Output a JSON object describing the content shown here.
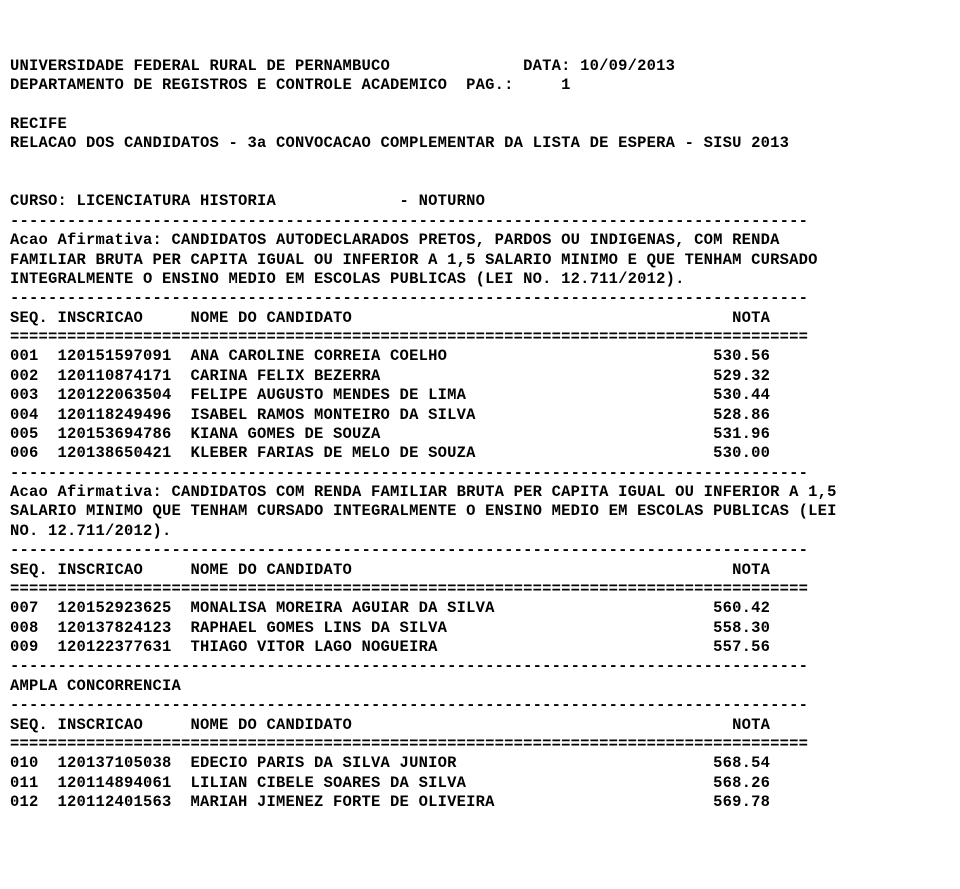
{
  "header": {
    "university": "UNIVERSIDADE FEDERAL RURAL DE PERNAMBUCO",
    "date_label": "DATA: 10/09/2013",
    "department": "DEPARTAMENTO DE REGISTROS E CONTROLE ACADEMICO",
    "page_label": "PAG.:     1",
    "city": "RECIFE",
    "report_title": "RELACAO DOS CANDIDATOS - 3a CONVOCACAO COMPLEMENTAR DA LISTA DE ESPERA - SISU 2013",
    "course_label": "CURSO: LICENCIATURA HISTORIA",
    "shift": "- NOTURNO"
  },
  "sep": {
    "dash": "------------------------------------------------------------------------------------",
    "equals": "===================================================================================="
  },
  "columns": {
    "seq": "SEQ.",
    "inscr": "INSCRICAO",
    "nome": "NOME DO CANDIDATO",
    "nota": "NOTA"
  },
  "sections": [
    {
      "title_lines": [
        "Acao Afirmativa: CANDIDATOS AUTODECLARADOS PRETOS, PARDOS OU INDIGENAS, COM RENDA",
        "FAMILIAR BRUTA PER CAPITA IGUAL OU INFERIOR A 1,5 SALARIO MINIMO E QUE TENHAM CURSADO",
        "INTEGRALMENTE O ENSINO MEDIO EM ESCOLAS PUBLICAS (LEI NO. 12.711/2012)."
      ],
      "rows": [
        {
          "seq": "001",
          "inscr": "120151597091",
          "nome": "ANA CAROLINE CORREIA COELHO",
          "nota": "530.56"
        },
        {
          "seq": "002",
          "inscr": "120110874171",
          "nome": "CARINA FELIX BEZERRA",
          "nota": "529.32"
        },
        {
          "seq": "003",
          "inscr": "120122063504",
          "nome": "FELIPE AUGUSTO MENDES DE LIMA",
          "nota": "530.44"
        },
        {
          "seq": "004",
          "inscr": "120118249496",
          "nome": "ISABEL RAMOS MONTEIRO DA SILVA",
          "nota": "528.86"
        },
        {
          "seq": "005",
          "inscr": "120153694786",
          "nome": "KIANA GOMES DE SOUZA",
          "nota": "531.96"
        },
        {
          "seq": "006",
          "inscr": "120138650421",
          "nome": "KLEBER FARIAS DE MELO DE SOUZA",
          "nota": "530.00"
        }
      ]
    },
    {
      "title_lines": [
        "Acao Afirmativa: CANDIDATOS COM RENDA FAMILIAR BRUTA PER CAPITA IGUAL OU INFERIOR A 1,5",
        "SALARIO MINIMO QUE TENHAM CURSADO INTEGRALMENTE O ENSINO MEDIO EM ESCOLAS PUBLICAS (LEI",
        "NO. 12.711/2012)."
      ],
      "rows": [
        {
          "seq": "007",
          "inscr": "120152923625",
          "nome": "MONALISA MOREIRA AGUIAR DA SILVA",
          "nota": "560.42"
        },
        {
          "seq": "008",
          "inscr": "120137824123",
          "nome": "RAPHAEL GOMES LINS DA SILVA",
          "nota": "558.30"
        },
        {
          "seq": "009",
          "inscr": "120122377631",
          "nome": "THIAGO VITOR LAGO NOGUEIRA",
          "nota": "557.56"
        }
      ]
    },
    {
      "title_lines": [
        "AMPLA CONCORRENCIA"
      ],
      "rows": [
        {
          "seq": "010",
          "inscr": "120137105038",
          "nome": "EDECIO PARIS DA SILVA JUNIOR",
          "nota": "568.54"
        },
        {
          "seq": "011",
          "inscr": "120114894061",
          "nome": "LILIAN CIBELE SOARES DA SILVA",
          "nota": "568.26"
        },
        {
          "seq": "012",
          "inscr": "120112401563",
          "nome": "MARIAH JIMENEZ FORTE DE OLIVEIRA",
          "nota": "569.78"
        }
      ]
    }
  ],
  "layout": {
    "line_width_chars": 84,
    "name_col_width": 50,
    "header_gap_univ_date": 54,
    "header_gap_dept_page": 48
  }
}
